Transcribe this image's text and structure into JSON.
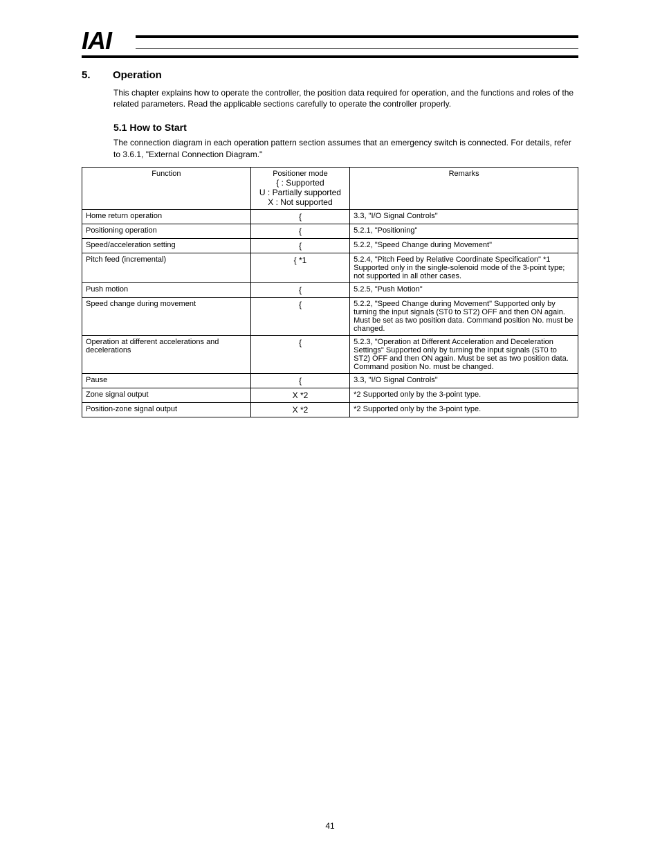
{
  "header": {
    "logo": "IAI"
  },
  "section": {
    "number": "5.",
    "title": "Operation",
    "intro": "This chapter explains how to operate the controller, the position data required for operation, and the functions and roles of the related parameters. Read the applicable sections carefully to operate the controller properly."
  },
  "sub": {
    "heading": "5.1  How to Start",
    "text": "The connection diagram in each operation pattern section assumes that an emergency switch is connected. For details, refer to 3.6.1, \"External Connection Diagram.\""
  },
  "table": {
    "headers": {
      "function": "Function",
      "positioner": "Positioner mode",
      "remarks": "Remarks"
    },
    "legend": {
      "supported": "{ : Supported",
      "partial": "U : Partially supported",
      "not": "X : Not supported"
    },
    "rows": [
      {
        "function": "Home return operation",
        "positioner_symbol": "{",
        "remarks": "3.3, \"I/O Signal Controls\""
      },
      {
        "function": "Positioning operation",
        "positioner_symbol": "{",
        "remarks": "5.2.1, \"Positioning\""
      },
      {
        "function": "Speed/acceleration setting",
        "positioner_symbol": "{",
        "remarks": "5.2.2, \"Speed Change during Movement\""
      },
      {
        "function": "Pitch feed (incremental)",
        "positioner_symbol": "{ *1",
        "remarks": "5.2.4, \"Pitch Feed by Relative Coordinate Specification\"\n*1 Supported only in the single-solenoid mode of the 3-point type; not supported in all other cases."
      },
      {
        "function": "Push motion",
        "positioner_symbol": "{",
        "remarks": "5.2.5, \"Push Motion\""
      },
      {
        "function": "Speed change during movement",
        "positioner_symbol": "{",
        "remarks": "5.2.2, \"Speed Change during Movement\"\nSupported only by turning the input signals (ST0 to ST2) OFF and then ON again. Must be set as two position data.\nCommand position No. must be changed."
      },
      {
        "function": "Operation at different accelerations and decelerations",
        "positioner_symbol": "{",
        "remarks": "5.2.3, \"Operation at Different Acceleration and Deceleration Settings\"\nSupported only by turning the input signals (ST0 to ST2) OFF and then ON again. Must be set as two position data.\nCommand position No. must be changed."
      },
      {
        "function": "Pause",
        "positioner_symbol": "{",
        "remarks": "3.3, \"I/O Signal Controls\""
      },
      {
        "function": "Zone signal output",
        "positioner_symbol": "X *2",
        "remarks": "*2 Supported only by the 3-point type."
      },
      {
        "function": "Position-zone signal output",
        "positioner_symbol": "X *2",
        "remarks": "*2 Supported only by the 3-point type."
      }
    ]
  },
  "footer": {
    "page": "41"
  }
}
